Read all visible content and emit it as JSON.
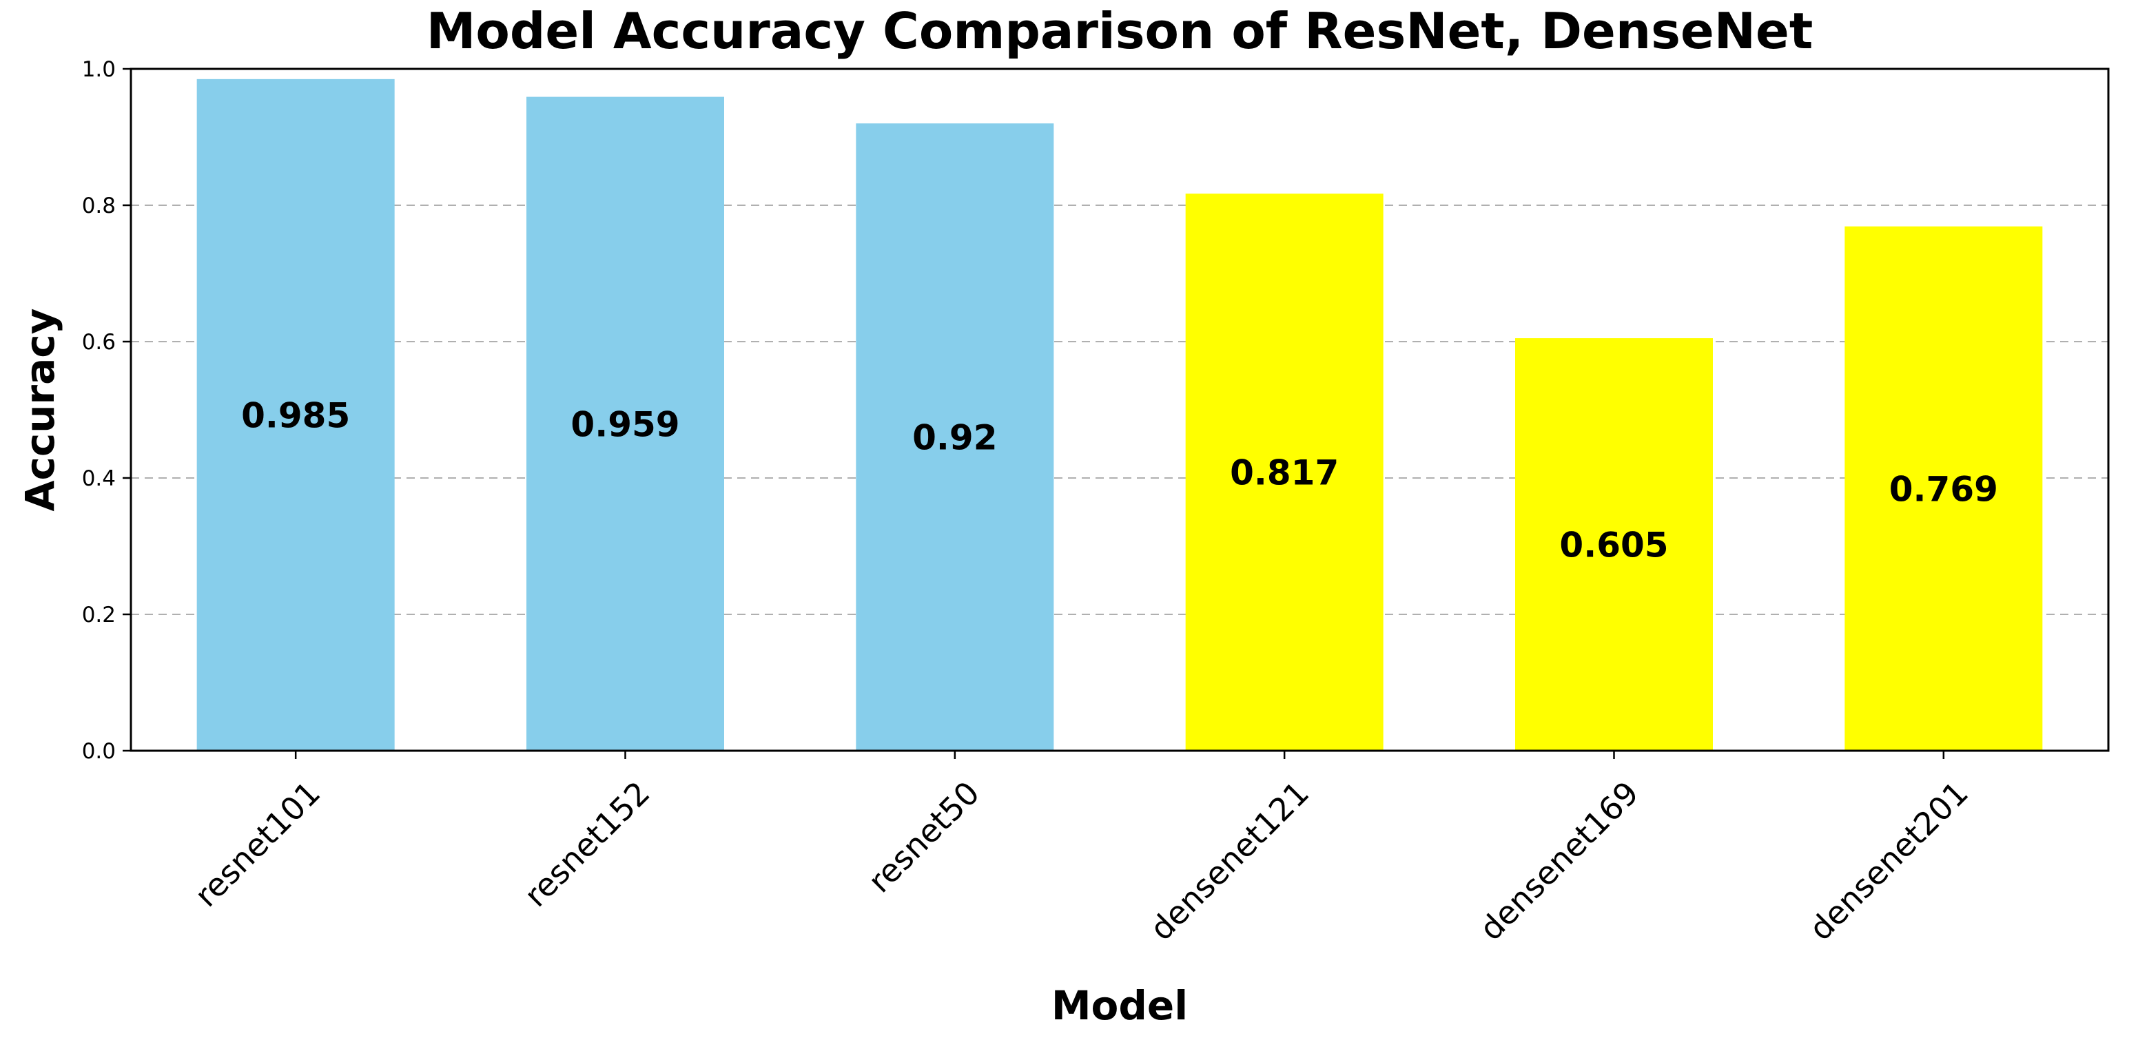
{
  "chart_data": {
    "type": "bar",
    "title": "Model Accuracy Comparison of ResNet, DenseNet",
    "xlabel": "Model",
    "ylabel": "Accuracy",
    "ylim": [
      0,
      1.0
    ],
    "yticks": [
      "0.0",
      "0.2",
      "0.4",
      "0.6",
      "0.8",
      "1.0"
    ],
    "grid": "horizontal-dashed",
    "categories": [
      "resnet101",
      "resnet152",
      "resnet50",
      "densenet121",
      "densenet169",
      "densenet201"
    ],
    "values": [
      0.985,
      0.959,
      0.92,
      0.817,
      0.605,
      0.769
    ],
    "value_labels": [
      "0.985",
      "0.959",
      "0.92",
      "0.817",
      "0.605",
      "0.769"
    ],
    "colors": [
      "#87ceeb",
      "#87ceeb",
      "#87ceeb",
      "#ffff00",
      "#ffff00",
      "#ffff00"
    ]
  }
}
